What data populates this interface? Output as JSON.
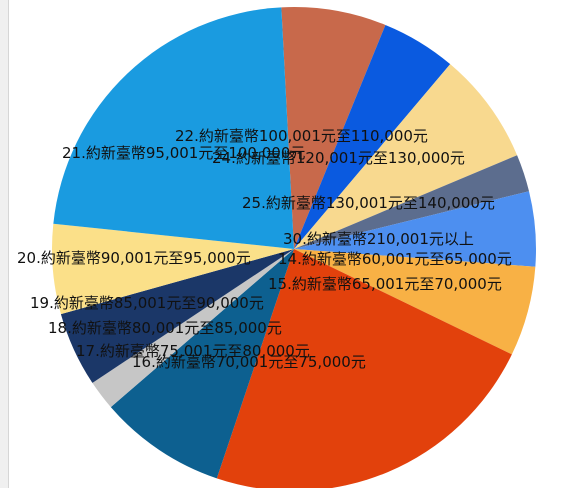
{
  "chart_data": {
    "type": "pie",
    "title": "",
    "legend": "none",
    "slices": [
      {
        "label": "22.約新臺幣100,001元至110,000元",
        "value": 7.0,
        "color": "#c8694b"
      },
      {
        "label": "24.約新臺幣120,001元至130,000元",
        "value": 5.0,
        "color": "#0a5ae0"
      },
      {
        "label": "25.約新臺幣130,001元至140,000元",
        "value": 7.5,
        "color": "#f8d98f"
      },
      {
        "label": "30.約新臺幣210,001元以上",
        "value": 2.5,
        "color": "#5c6d8e"
      },
      {
        "label": "14.約新臺幣60,001元至65,000元",
        "value": 5.0,
        "color": "#4d8ff0"
      },
      {
        "label": "15.約新臺幣65,001元至70,000元",
        "value": 6.0,
        "color": "#f8b145"
      },
      {
        "label": "16.約新臺幣70,001元至75,000元",
        "value": 23.0,
        "color": "#e2410c"
      },
      {
        "label": "17.約新臺幣75,001元至80,000元",
        "value": 8.5,
        "color": "#0d6090"
      },
      {
        "label": "18.約新臺幣80,001元至85,000元",
        "value": 2.0,
        "color": "#c6c6c6"
      },
      {
        "label": "19.約新臺幣85,001元至90,000元",
        "value": 5.0,
        "color": "#1b3768"
      },
      {
        "label": "20.約新臺幣90,001元至95,000元",
        "value": 6.0,
        "color": "#fbe089"
      },
      {
        "label": "21.約新臺幣95,001元至100,000元",
        "value": 22.5,
        "color": "#1a9be0"
      }
    ]
  }
}
